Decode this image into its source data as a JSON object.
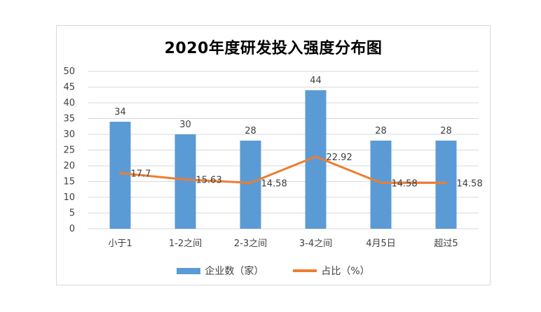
{
  "chart_data": {
    "type": "bar",
    "title": "2020年度研发投入强度分布图",
    "categories": [
      "小于1",
      "1-2之间",
      "2-3之间",
      "3-4之间",
      "4月5日",
      "超过5"
    ],
    "series": [
      {
        "name": "企业数（家）",
        "type": "bar",
        "values": [
          34,
          30,
          28,
          44,
          28,
          28
        ]
      },
      {
        "name": "占比（%）",
        "type": "line",
        "values": [
          17.7,
          15.63,
          14.58,
          22.92,
          14.58,
          14.58
        ]
      }
    ],
    "data_labels_bar": [
      "34",
      "30",
      "28",
      "44",
      "28",
      "28"
    ],
    "data_labels_line": [
      "17.7",
      "15.63",
      "14.58",
      "22.92",
      "14.58",
      "14.58"
    ],
    "y_ticks": [
      "0",
      "5",
      "10",
      "15",
      "20",
      "25",
      "30",
      "35",
      "40",
      "45",
      "50"
    ],
    "ylim": [
      0,
      50
    ],
    "grid": true,
    "legend_position": "bottom",
    "colors": {
      "bar": "#5b9bd5",
      "line": "#ed7d31",
      "grid": "#d9d9d9",
      "text": "#404040"
    }
  }
}
